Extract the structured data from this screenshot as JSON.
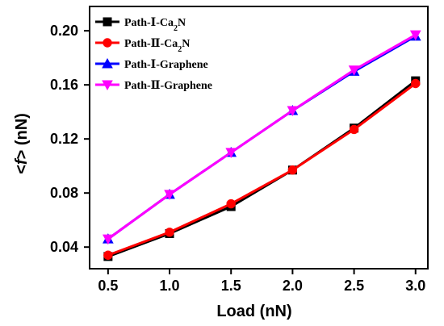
{
  "chart_data": {
    "type": "line",
    "title": "",
    "xlabel": "Load (nN)",
    "ylabel_italic": "f",
    "ylabel_prefix": "<",
    "ylabel_suffix": "> (nN)",
    "x": [
      0.5,
      1.0,
      1.5,
      2.0,
      2.5,
      3.0
    ],
    "x_tick_labels": [
      "0.5",
      "1.0",
      "1.5",
      "2.0",
      "2.5",
      "3.0"
    ],
    "y_ticks": [
      0.04,
      0.08,
      0.12,
      0.16,
      0.2
    ],
    "y_tick_labels": [
      "0.04",
      "0.08",
      "0.12",
      "0.16",
      "0.20"
    ],
    "xlim": [
      0.35,
      3.1
    ],
    "ylim": [
      0.024,
      0.218
    ],
    "grid": false,
    "legend_position": "top-left",
    "series": [
      {
        "name": "Path-Ⅰ-Ca2N",
        "legend_parts": [
          "Path-Ⅰ-Ca",
          "2",
          "N"
        ],
        "color": "#000000",
        "marker": "square",
        "values": [
          0.033,
          0.05,
          0.07,
          0.097,
          0.128,
          0.163
        ]
      },
      {
        "name": "Path-Ⅱ-Ca2N",
        "legend_parts": [
          "Path-Ⅱ-Ca",
          "2",
          "N"
        ],
        "color": "#ff0000",
        "marker": "circle",
        "values": [
          0.034,
          0.051,
          0.072,
          0.097,
          0.127,
          0.161
        ]
      },
      {
        "name": "Path-Ⅰ-Graphene",
        "legend_parts": [
          "Path-Ⅰ-Graphene",
          "",
          ""
        ],
        "color": "#0000ff",
        "marker": "triangle-up",
        "values": [
          0.046,
          0.079,
          0.11,
          0.141,
          0.17,
          0.196
        ]
      },
      {
        "name": "Path-Ⅱ-Graphene",
        "legend_parts": [
          "Path-Ⅱ-Graphene",
          "",
          ""
        ],
        "color": "#ff00ff",
        "marker": "triangle-down",
        "values": [
          0.046,
          0.079,
          0.11,
          0.141,
          0.171,
          0.197
        ]
      }
    ]
  }
}
